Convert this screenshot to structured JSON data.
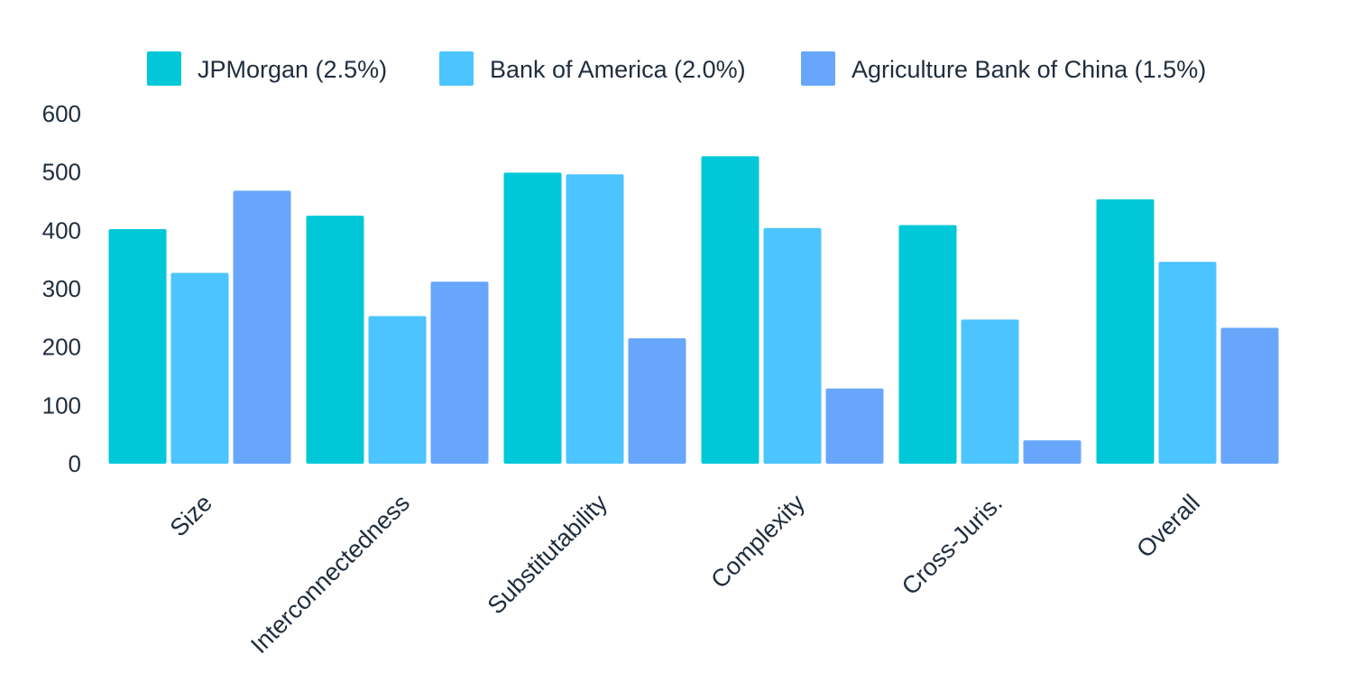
{
  "chart_data": {
    "type": "bar",
    "categories": [
      "Size",
      "Interconnectedness",
      "Substitutability",
      "Complexity",
      "Cross-Juris.",
      "Overall"
    ],
    "series": [
      {
        "name": "JPMorgan (2.5%)",
        "color": "#00c8d8",
        "values": [
          402,
          425,
          499,
          527,
          409,
          453
        ]
      },
      {
        "name": "Bank of America (2.0%)",
        "color": "#4cc4ff",
        "values": [
          327,
          253,
          496,
          404,
          247,
          346
        ]
      },
      {
        "name": "Agriculture Bank of China (1.5%)",
        "color": "#68a6fb",
        "values": [
          468,
          312,
          215,
          129,
          40,
          233
        ]
      }
    ],
    "y_ticks": [
      0,
      100,
      200,
      300,
      400,
      500,
      600
    ],
    "ylim": [
      0,
      600
    ],
    "legend_position": "top",
    "grid": false
  }
}
